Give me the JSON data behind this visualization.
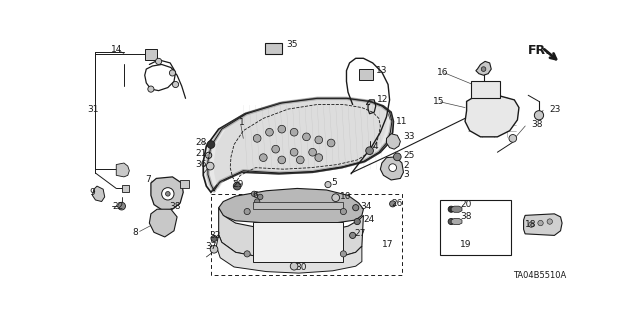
{
  "bg_color": "#ffffff",
  "line_color": "#1a1a1a",
  "gray_fill": "#c8c8c8",
  "light_fill": "#e8e8e8",
  "diagram_code": "TA04B5510A",
  "fr_label": "FR.",
  "fig_w": 6.4,
  "fig_h": 3.19,
  "dpi": 100,
  "font_size": 6.5,
  "labels": [
    [
      "14",
      45,
      14,
      "left"
    ],
    [
      "31",
      8,
      92,
      "left"
    ],
    [
      "35",
      248,
      9,
      "left"
    ],
    [
      "13",
      367,
      47,
      "left"
    ],
    [
      "12",
      367,
      83,
      "left"
    ],
    [
      "11",
      392,
      108,
      "left"
    ],
    [
      "16",
      457,
      45,
      "left"
    ],
    [
      "15",
      449,
      82,
      "left"
    ],
    [
      "23",
      607,
      90,
      "left"
    ],
    [
      "38",
      583,
      112,
      "left"
    ],
    [
      "33",
      400,
      128,
      "left"
    ],
    [
      "4",
      365,
      143,
      "left"
    ],
    [
      "25",
      400,
      152,
      "left"
    ],
    [
      "2",
      412,
      168,
      "left"
    ],
    [
      "3",
      412,
      178,
      "left"
    ],
    [
      "1",
      200,
      112,
      "left"
    ],
    [
      "28",
      148,
      138,
      "left"
    ],
    [
      "21",
      148,
      152,
      "left"
    ],
    [
      "36",
      148,
      166,
      "left"
    ],
    [
      "29",
      196,
      192,
      "left"
    ],
    [
      "6",
      222,
      206,
      "left"
    ],
    [
      "5",
      316,
      190,
      "left"
    ],
    [
      "10",
      328,
      208,
      "left"
    ],
    [
      "7",
      78,
      188,
      "left"
    ],
    [
      "9",
      10,
      202,
      "left"
    ],
    [
      "22",
      44,
      220,
      "left"
    ],
    [
      "38",
      114,
      220,
      "left"
    ],
    [
      "8",
      68,
      255,
      "left"
    ],
    [
      "34",
      358,
      220,
      "left"
    ],
    [
      "24",
      362,
      238,
      "left"
    ],
    [
      "27",
      350,
      256,
      "left"
    ],
    [
      "17",
      386,
      268,
      "left"
    ],
    [
      "32",
      166,
      258,
      "left"
    ],
    [
      "37",
      160,
      272,
      "left"
    ],
    [
      "30",
      272,
      298,
      "left"
    ],
    [
      "26",
      398,
      218,
      "left"
    ],
    [
      "20",
      488,
      218,
      "left"
    ],
    [
      "38",
      488,
      234,
      "left"
    ],
    [
      "19",
      488,
      266,
      "left"
    ],
    [
      "18",
      572,
      244,
      "left"
    ]
  ]
}
